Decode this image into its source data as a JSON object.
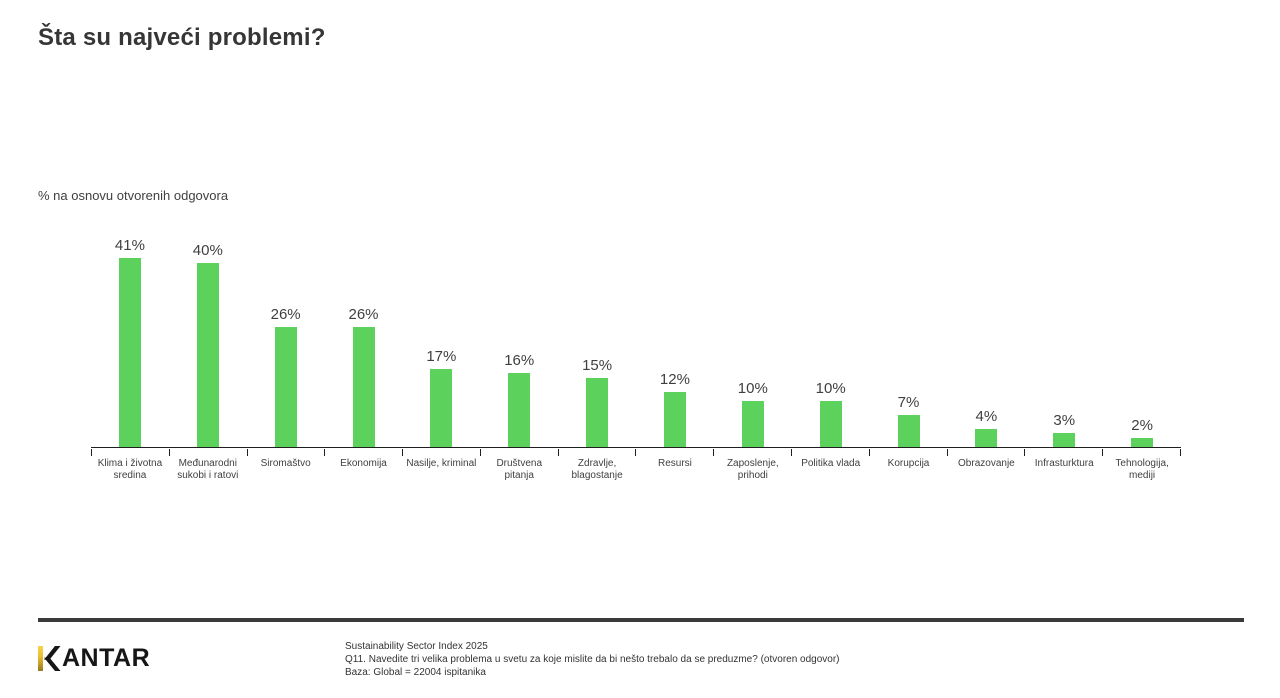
{
  "header": {
    "title": "Šta su najveći problemi?"
  },
  "chart_data": {
    "type": "bar",
    "title": "Šta su najveći problemi?",
    "subtitle": "% na osnovu otvorenih odgovora",
    "categories": [
      "Klima i životna\nsredina",
      "Međunarodni\nsukobi i ratovi",
      "Siromaštvo",
      "Ekonomija",
      "Nasilje, kriminal",
      "Društvena\npitanja",
      "Zdravlje,\nblagostanje",
      "Resursi",
      "Zaposlenje,\nprihodi",
      "Politika vlada",
      "Korupcija",
      "Obrazovanje",
      "Infrasturktura",
      "Tehnologija,\nmediji"
    ],
    "values": [
      41,
      40,
      26,
      26,
      17,
      16,
      15,
      12,
      10,
      10,
      7,
      4,
      3,
      2
    ],
    "unit": "%",
    "value_label_format": "{value}%",
    "bar_color": "#5cd15c",
    "axis_color": "#1f1f1f",
    "ylim": [
      0,
      45
    ],
    "grid": false,
    "legend_position": "none",
    "value_labels_position": "above-bars",
    "y_axis_visible": false
  },
  "footer": {
    "logo_text": "KANTAR",
    "logo_accent_color": "#e8bc33",
    "lines": [
      "Sustainability Sector Index 2025",
      "Q11. Navedite tri velika problema u svetu za koje mislite da bi nešto trebalo da se preduzme? (otvoren odgovor)",
      "Baza: Global = 22004 ispitanika"
    ]
  }
}
